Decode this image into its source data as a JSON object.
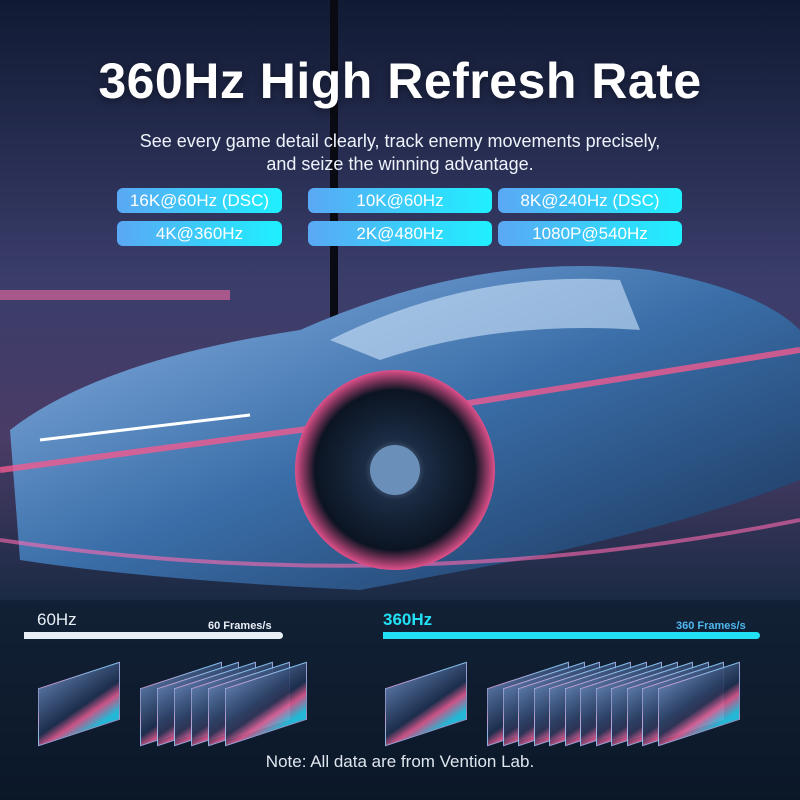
{
  "headline": "360Hz High Refresh Rate",
  "subtitle": [
    "See every game detail clearly, track enemy movements precisely,",
    "and seize the winning advantage."
  ],
  "resolutions": [
    "16K@60Hz (DSC)",
    "10K@60Hz",
    "8K@240Hz (DSC)",
    "4K@360Hz",
    "2K@480Hz",
    "1080P@540Hz"
  ],
  "comparison": {
    "left": {
      "rate": "60Hz",
      "frames": "60 Frames/s",
      "color": "#e8eef5"
    },
    "right": {
      "rate": "360Hz",
      "frames": "360 Frames/s",
      "color": "#22e0f5"
    }
  },
  "note": "Note: All data are from Vention Lab.",
  "colors": {
    "pill_start": "#5aa8f4",
    "pill_end": "#1ff0ff"
  }
}
